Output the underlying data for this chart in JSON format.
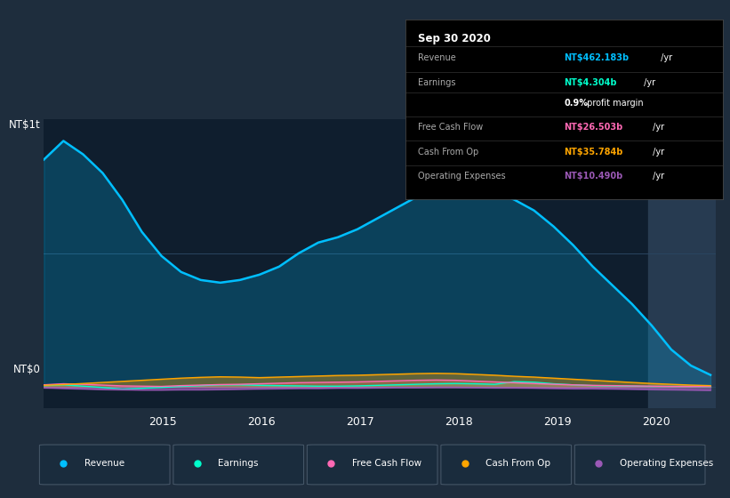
{
  "bg_color": "#1e2d3d",
  "chart_area_color": "#0f1e2e",
  "title": "Sep 30 2020",
  "info_box": {
    "Revenue": {
      "value": "NT$462.183b",
      "color": "#00bfff"
    },
    "Earnings": {
      "value": "NT$4.304b",
      "color": "#00ffcc"
    },
    "profit_margin": "0.9%",
    "Free Cash Flow": {
      "value": "NT$26.503b",
      "color": "#ff69b4"
    },
    "Cash From Op": {
      "value": "NT$35.784b",
      "color": "#ffa500"
    },
    "Operating Expenses": {
      "value": "NT$10.490b",
      "color": "#9b59b6"
    }
  },
  "ylabel": "NT$1t",
  "y0label": "NT$0",
  "legend": [
    {
      "label": "Revenue",
      "color": "#00bfff"
    },
    {
      "label": "Earnings",
      "color": "#00ffcc"
    },
    {
      "label": "Free Cash Flow",
      "color": "#ff69b4"
    },
    {
      "label": "Cash From Op",
      "color": "#ffa500"
    },
    {
      "label": "Operating Expenses",
      "color": "#9b59b6"
    }
  ],
  "x_ticks": [
    2015,
    2016,
    2017,
    2018,
    2019,
    2020
  ],
  "revenue": [
    850,
    920,
    870,
    800,
    700,
    580,
    490,
    430,
    400,
    390,
    400,
    420,
    450,
    500,
    540,
    560,
    590,
    630,
    670,
    710,
    750,
    760,
    750,
    730,
    700,
    660,
    600,
    530,
    450,
    380,
    310,
    230,
    140,
    80,
    45
  ],
  "earnings": [
    5,
    8,
    3,
    -2,
    -8,
    -5,
    -2,
    2,
    5,
    8,
    8,
    6,
    5,
    4,
    3,
    3,
    4,
    6,
    8,
    10,
    12,
    13,
    12,
    10,
    20,
    18,
    12,
    8,
    5,
    4,
    3,
    2,
    2,
    2,
    2
  ],
  "free_cash_flow": [
    8,
    12,
    10,
    7,
    4,
    3,
    2,
    5,
    7,
    9,
    10,
    12,
    14,
    16,
    17,
    18,
    19,
    21,
    23,
    25,
    26,
    25,
    22,
    19,
    16,
    13,
    10,
    8,
    6,
    5,
    4,
    3,
    2,
    2,
    3
  ],
  "cash_from_op": [
    6,
    9,
    13,
    17,
    21,
    25,
    29,
    33,
    36,
    38,
    37,
    35,
    37,
    39,
    41,
    43,
    44,
    46,
    48,
    50,
    51,
    50,
    47,
    44,
    40,
    37,
    33,
    29,
    25,
    21,
    17,
    13,
    10,
    7,
    5
  ],
  "operating_expenses": [
    -3,
    -5,
    -7,
    -9,
    -10,
    -11,
    -11,
    -10,
    -10,
    -9,
    -8,
    -7,
    -6,
    -5,
    -5,
    -4,
    -4,
    -3,
    -2,
    -2,
    -1,
    -1,
    -2,
    -3,
    -3,
    -4,
    -5,
    -6,
    -6,
    -7,
    -8,
    -9,
    -10,
    -11,
    -12
  ]
}
